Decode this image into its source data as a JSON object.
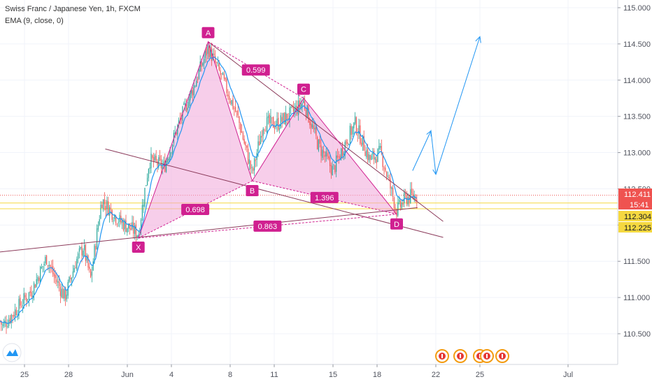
{
  "header": {
    "title": "Swiss Franc / Japanese Yen, 1h, FXCM",
    "indicator": "EMA (9, close, 0)"
  },
  "chart_data": {
    "type": "candlestick",
    "symbol": "CHFJPY",
    "interval": "1h",
    "ylim": [
      110.1,
      115.15
    ],
    "y_ticks": [
      "115.000",
      "114.500",
      "114.000",
      "113.500",
      "113.000",
      "112.500",
      "112.000",
      "111.500",
      "111.000",
      "110.500"
    ],
    "x_ticks": [
      "25",
      "28",
      "Jun",
      "4",
      "8",
      "11",
      "15",
      "18",
      "22",
      "25",
      "Jul"
    ],
    "price_labels": [
      {
        "text": "112.411",
        "value": 112.411,
        "color": "#ef5350"
      },
      {
        "text": "15:41",
        "value": 112.33,
        "color": "#ef5350"
      },
      {
        "text": "112.304",
        "value": 112.304,
        "color": "#f5d840"
      },
      {
        "text": "112.225",
        "value": 112.225,
        "color": "#f5d840"
      }
    ],
    "harmonic_points": [
      {
        "label": "X",
        "x": "2020-06-01T18:00",
        "y": 111.82
      },
      {
        "label": "A",
        "x": "2020-06-06T12:00",
        "y": 114.53
      },
      {
        "label": "B",
        "x": "2020-06-09T12:00",
        "y": 112.61
      },
      {
        "label": "C",
        "x": "2020-06-13T00:00",
        "y": 113.75
      },
      {
        "label": "D",
        "x": "2020-06-19T08:00",
        "y": 112.15
      }
    ],
    "ratios": [
      "0.599",
      "0.698",
      "1.396",
      "0.863"
    ],
    "trendlines": [
      {
        "from": {
          "x": "2020-05-22T00:00",
          "y": 111.6
        },
        "to": {
          "x": "2020-06-20T18:00",
          "y": 112.24
        }
      },
      {
        "from": {
          "x": "2020-05-30T12:00",
          "y": 113.05
        },
        "to": {
          "x": "2020-06-22T12:00",
          "y": 111.83
        }
      },
      {
        "from": {
          "x": "2020-06-06T12:00",
          "y": 114.53
        },
        "to": {
          "x": "2020-06-22T12:00",
          "y": 112.05
        }
      }
    ],
    "projection": [
      {
        "x": "2020-06-20T10:00",
        "y": 112.75
      },
      {
        "x": "2020-06-21T16:00",
        "y": 113.3
      },
      {
        "x": "2020-06-22T00:00",
        "y": 112.7
      },
      {
        "x": "2020-06-25T00:00",
        "y": 114.6
      }
    ],
    "colors": {
      "up": "#26a69a",
      "down": "#ef5350",
      "ema": "#2196f3",
      "pattern": "#d02090",
      "pattern_fill": "#f0a6d8",
      "trend": "#8b3a5a",
      "projection": "#2196f3",
      "last_price": "#ef5350",
      "level": "#f5d840"
    },
    "grid": true,
    "axis_side": "right"
  }
}
